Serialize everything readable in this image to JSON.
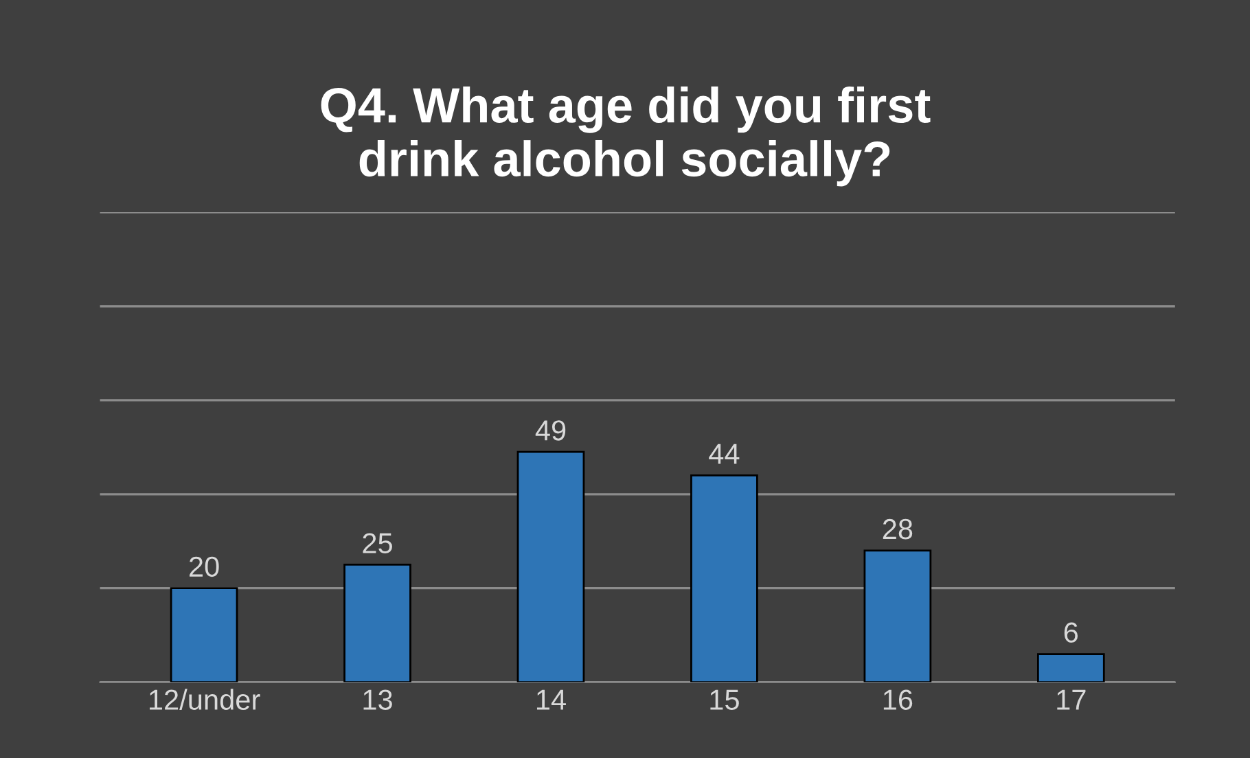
{
  "chart_data": {
    "type": "bar",
    "title": "Q4. What age did you first\ndrink alcohol socially?",
    "categories": [
      "12/under",
      "13",
      "14",
      "15",
      "16",
      "17"
    ],
    "values": [
      20,
      25,
      49,
      44,
      28,
      6
    ],
    "color": "#2e75b6",
    "ylim": [
      0,
      100
    ],
    "yticks": [
      {
        "value": 0,
        "label": null
      },
      {
        "value": 20,
        "label": null
      },
      {
        "value": 40,
        "label": null
      },
      {
        "value": 60,
        "label": null
      },
      {
        "value": 80,
        "label": null
      },
      {
        "value": 100,
        "label": null
      }
    ],
    "grid": "y",
    "tick_labels": "x",
    "data_labels": true
  }
}
